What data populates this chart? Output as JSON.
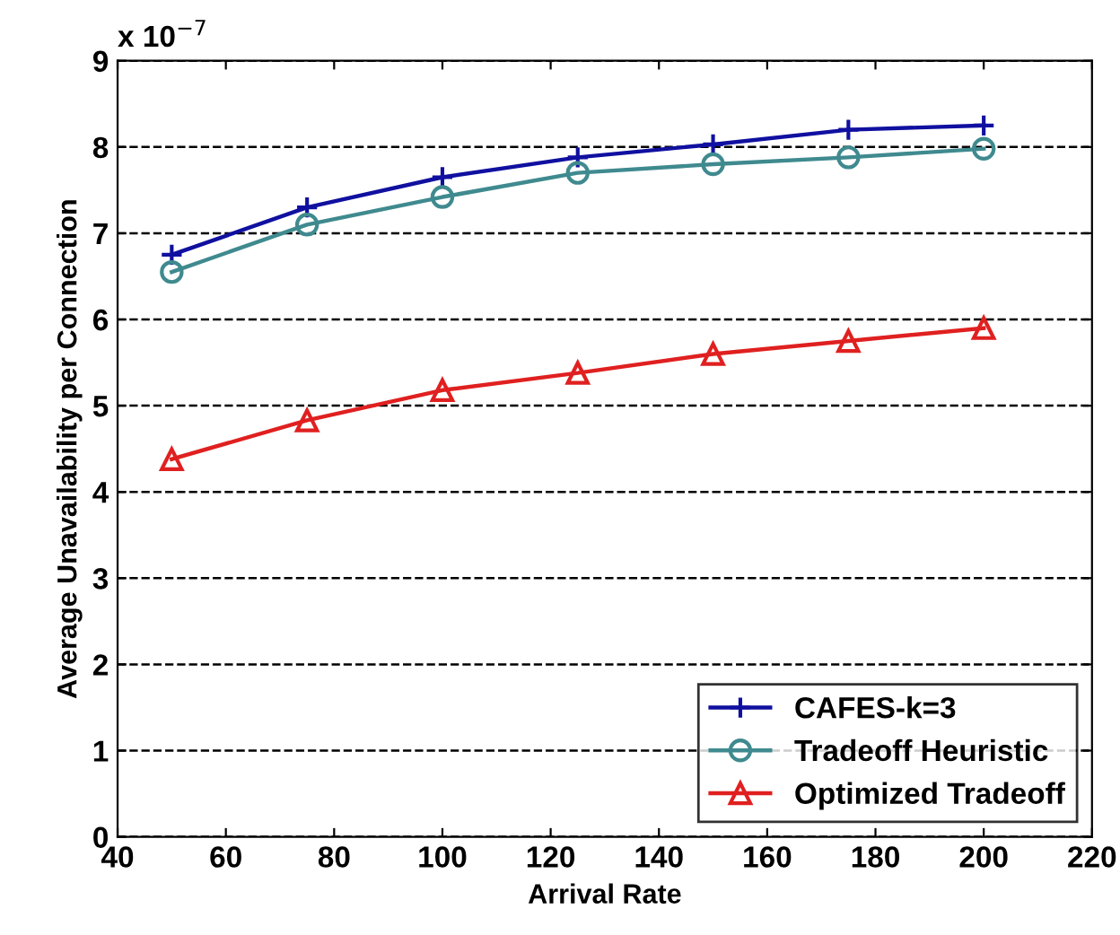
{
  "chart_data": {
    "type": "line",
    "xlabel": "Arrival Rate",
    "ylabel": "Average Unavailability per Connection",
    "x": [
      50,
      75,
      100,
      125,
      150,
      175,
      200
    ],
    "series": [
      {
        "name": "CAFES-k=3",
        "color": "#1010a0",
        "marker": "cross",
        "values": [
          6.75,
          7.3,
          7.65,
          7.88,
          8.03,
          8.2,
          8.25
        ]
      },
      {
        "name": "Tradeoff Heuristic",
        "color": "#3f8a8f",
        "marker": "circle",
        "values": [
          6.55,
          7.1,
          7.42,
          7.7,
          7.8,
          7.88,
          7.98
        ]
      },
      {
        "name": "Optimized Tradeoff",
        "color": "#e02020",
        "marker": "triangle",
        "values": [
          4.38,
          4.83,
          5.18,
          5.38,
          5.6,
          5.75,
          5.9
        ]
      }
    ],
    "xlim": [
      40,
      220
    ],
    "xticks": [
      40,
      60,
      80,
      100,
      120,
      140,
      160,
      180,
      200,
      220
    ],
    "ylim": [
      0,
      9
    ],
    "yticks": [
      0,
      1,
      2,
      3,
      4,
      5,
      6,
      7,
      8,
      9
    ],
    "grid": "y",
    "legend": "bottom right",
    "line_style": "solid",
    "annotations": [
      "x 10$^{−7}$"
    ]
  }
}
